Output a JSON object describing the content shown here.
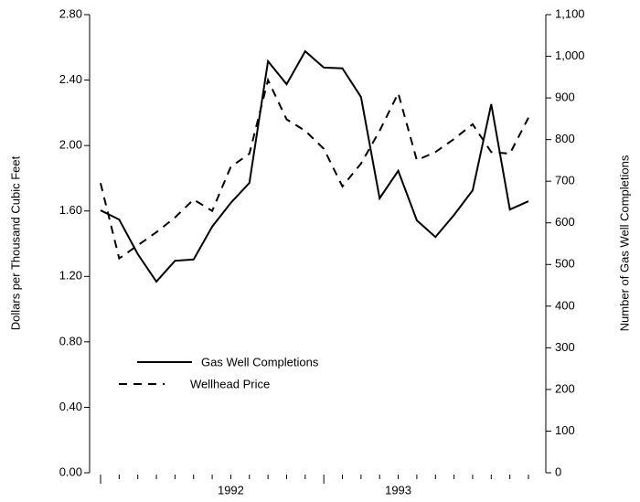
{
  "chart_data": {
    "type": "line",
    "y_label": "Dollars per Thousand Cubic Feet",
    "y2_label": "Number of Gas Well Completions",
    "categories": [
      null,
      null,
      null,
      null,
      null,
      null,
      null,
      "1992",
      null,
      null,
      null,
      null,
      null,
      null,
      null,
      null,
      "1993",
      null,
      null,
      null,
      null,
      null,
      null,
      null
    ],
    "series": [
      {
        "name": "Gas Well Completions",
        "color": "#000000",
        "dash": "solid",
        "axis": "y2",
        "values": [
          630,
          608,
          525,
          459,
          509,
          512,
          591,
          648,
          696,
          988,
          933,
          1012,
          973,
          971,
          902,
          659,
          725,
          606,
          566,
          619,
          678,
          885,
          632,
          652
        ]
      },
      {
        "name": "Wellhead Price",
        "color": "#000000",
        "dash": "dashed",
        "values": [
          1.77,
          1.31,
          1.39,
          1.47,
          1.56,
          1.67,
          1.6,
          1.87,
          1.95,
          2.4,
          2.16,
          2.09,
          1.98,
          1.75,
          1.89,
          2.09,
          2.32,
          1.91,
          1.96,
          2.04,
          2.13,
          1.96,
          1.95,
          2.17
        ]
      }
    ],
    "ylim": [
      0,
      2.8
    ],
    "yticks": [
      {
        "value": 0,
        "label": "0.00"
      },
      {
        "value": 0.4,
        "label": "0.40"
      },
      {
        "value": 0.8,
        "label": "0.80"
      },
      {
        "value": 1.2,
        "label": "1.20"
      },
      {
        "value": 1.6,
        "label": "1.60"
      },
      {
        "value": 2,
        "label": "2.00"
      },
      {
        "value": 2.4,
        "label": "2.40"
      },
      {
        "value": 2.8,
        "label": "2.80"
      }
    ],
    "y2lim": [
      0,
      1100
    ],
    "y2ticks": [
      0,
      100,
      200,
      300,
      400,
      500,
      600,
      700,
      800,
      900,
      {
        "value": 1000,
        "label": "1,000"
      },
      {
        "value": 1100,
        "label": "1,100"
      }
    ],
    "grid": false
  }
}
